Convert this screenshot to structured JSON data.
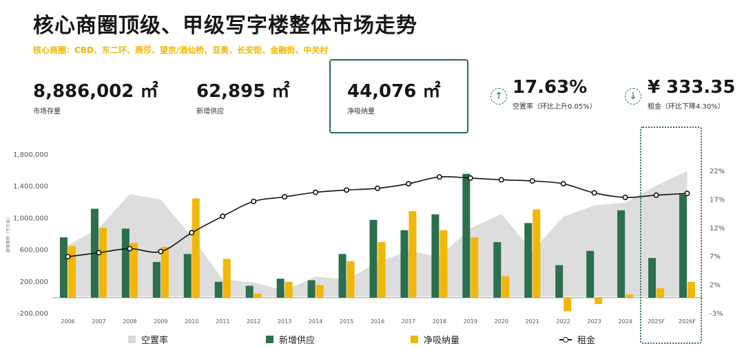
{
  "header": {
    "title": "核心商圈顶级、甲级写字楼整体市场走势",
    "subtitle": "核心商圈：CBD、东二环、燕莎、望京/酒仙桥、亚奥、长安街、金融街、中关村"
  },
  "kpis": [
    {
      "value": "8,886,002 ㎡",
      "label": "市场存量"
    },
    {
      "value": "62,895 ㎡",
      "label": "新增供应"
    },
    {
      "value": "44,076 ㎡",
      "label": "净吸纳量"
    },
    {
      "value": "17.63%",
      "label": "空置率（环比上升0.05%）",
      "icon": "arrow-up-icon"
    },
    {
      "value": "¥ 333.35",
      "label": "租金（环比下降4.30%）",
      "icon": "arrow-down-icon"
    }
  ],
  "colors": {
    "vacancy": "#d9d9d9",
    "supply": "#2b6f4c",
    "absorption": "#f2b705",
    "rent": "#111111"
  },
  "legend": {
    "vacancy": "空置率",
    "supply": "新增供应",
    "absorption": "净吸纳量",
    "rent": "租金"
  },
  "chart_data": {
    "type": "bar",
    "categories": [
      "2006",
      "2007",
      "2008",
      "2009",
      "2010",
      "2011",
      "2012",
      "2013",
      "2014",
      "2015",
      "2016",
      "2017",
      "2018",
      "2019",
      "2020",
      "2021",
      "2022",
      "2023",
      "2024",
      "2025F",
      "2026F"
    ],
    "yticks_left": [
      "1,800,000",
      "1,400,000",
      "1,000,000",
      "600,000",
      "200,000",
      "-200,000"
    ],
    "yticks_right": [
      "22%",
      "17%",
      "12%",
      "7%",
      "2%",
      "-3%"
    ],
    "ylim_left": [
      -200000,
      1800000
    ],
    "ylim_right": [
      -3,
      22
    ],
    "ylabel": "建筑面积（平方米）",
    "series": [
      {
        "name": "新增供应",
        "type": "bar",
        "axis": "left",
        "values": [
          760000,
          1120000,
          870000,
          450000,
          550000,
          200000,
          150000,
          240000,
          220000,
          550000,
          980000,
          850000,
          1050000,
          1560000,
          700000,
          940000,
          410000,
          590000,
          1100000,
          500000,
          1300000
        ]
      },
      {
        "name": "净吸纳量",
        "type": "bar",
        "axis": "left",
        "values": [
          650000,
          880000,
          690000,
          640000,
          1250000,
          490000,
          50000,
          200000,
          160000,
          460000,
          700000,
          1090000,
          850000,
          760000,
          270000,
          1110000,
          -170000,
          -80000,
          40000,
          120000,
          200000
        ]
      },
      {
        "name": "空置率",
        "type": "area",
        "axis": "right",
        "values": [
          9.0,
          12.0,
          18.0,
          17.0,
          10.5,
          3.0,
          2.5,
          1.0,
          3.5,
          3.0,
          6.0,
          8.0,
          7.0,
          12.0,
          14.5,
          8.0,
          14.0,
          16.0,
          16.5,
          19.5,
          22.0
        ]
      },
      {
        "name": "租金",
        "type": "line",
        "axis": "right",
        "values": [
          7.0,
          7.7,
          8.4,
          7.9,
          11.2,
          14.1,
          16.7,
          17.5,
          18.3,
          18.7,
          19.0,
          19.8,
          21.0,
          20.8,
          20.5,
          20.3,
          19.8,
          18.2,
          17.4,
          17.8,
          18.1
        ]
      }
    ],
    "grid": false,
    "legend_position": "bottom"
  }
}
